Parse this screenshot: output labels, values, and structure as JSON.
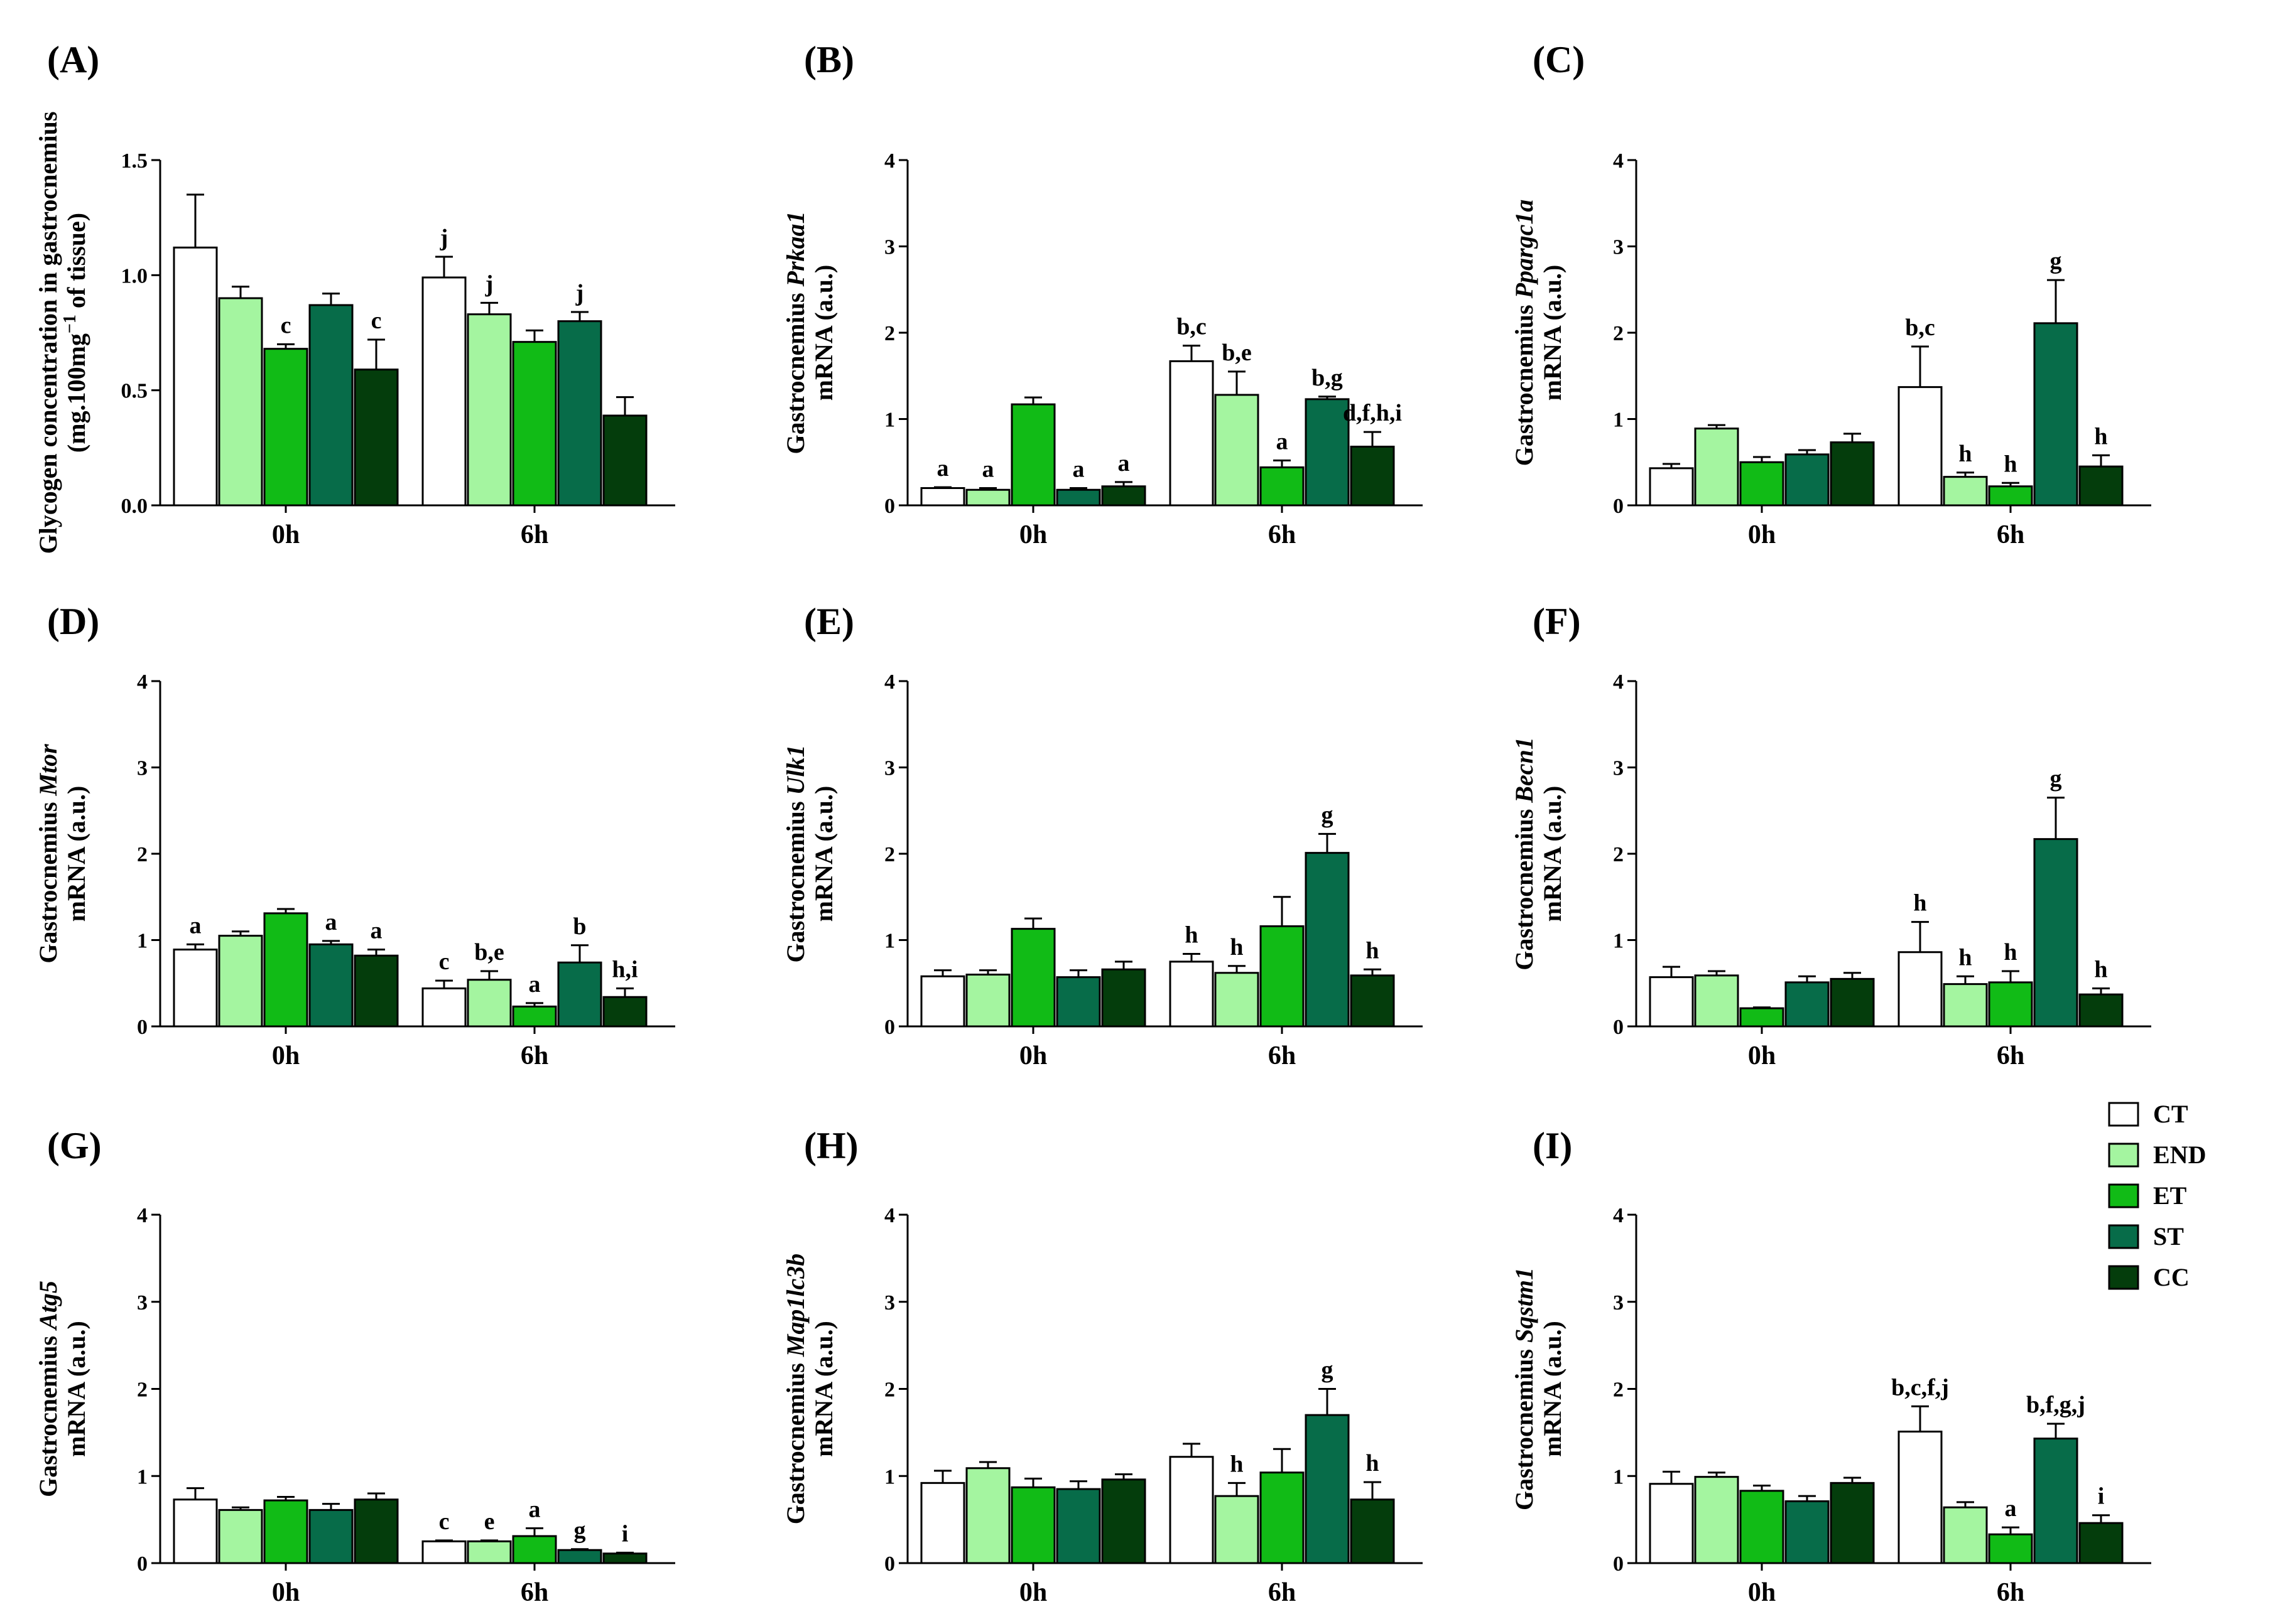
{
  "colors": {
    "CT": "#ffffff",
    "END": "#a4f5a0",
    "ET": "#11bb16",
    "ST": "#076c49",
    "CC": "#043d0c",
    "axis": "#000000"
  },
  "legend": {
    "position": "right, beside panel (I)",
    "items": [
      "CT",
      "END",
      "ET",
      "ST",
      "CC"
    ]
  },
  "chart_data": [
    {
      "panel": "(A)",
      "type": "bar",
      "ylabel_line1": "Glycogen concentration in gastrocnemius",
      "ylabel_line2_parts": [
        "(mg.100mg",
        "−1",
        " of tissue)"
      ],
      "ylim": [
        0,
        1.5
      ],
      "yticks": [
        "0.0",
        "0.5",
        "1.0",
        "1.5"
      ],
      "ytick_values": [
        0,
        0.5,
        1.0,
        1.5
      ],
      "categories": [
        "0h",
        "6h"
      ],
      "series": [
        {
          "name": "CT",
          "values": [
            1.12,
            0.99
          ],
          "errors": [
            0.23,
            0.09
          ],
          "labels": [
            "",
            "j"
          ]
        },
        {
          "name": "END",
          "values": [
            0.9,
            0.83
          ],
          "errors": [
            0.05,
            0.05
          ],
          "labels": [
            "",
            "j"
          ]
        },
        {
          "name": "ET",
          "values": [
            0.68,
            0.71
          ],
          "errors": [
            0.02,
            0.05
          ],
          "labels": [
            "c",
            ""
          ]
        },
        {
          "name": "ST",
          "values": [
            0.87,
            0.8
          ],
          "errors": [
            0.05,
            0.04
          ],
          "labels": [
            "",
            "j"
          ]
        },
        {
          "name": "CC",
          "values": [
            0.59,
            0.39
          ],
          "errors": [
            0.13,
            0.08
          ],
          "labels": [
            "c",
            ""
          ]
        }
      ]
    },
    {
      "panel": "(B)",
      "type": "bar",
      "ylabel_line1_parts": [
        "Gastrocnemius ",
        "Prkaa1"
      ],
      "ylabel_line2": "mRNA (a.u.)",
      "ylim": [
        0,
        4
      ],
      "yticks": [
        "0",
        "1",
        "2",
        "3",
        "4"
      ],
      "ytick_values": [
        0,
        1,
        2,
        3,
        4
      ],
      "categories": [
        "0h",
        "6h"
      ],
      "series": [
        {
          "name": "CT",
          "values": [
            0.2,
            1.67
          ],
          "errors": [
            0.01,
            0.18
          ],
          "labels": [
            "a",
            "b,c"
          ]
        },
        {
          "name": "END",
          "values": [
            0.18,
            1.28
          ],
          "errors": [
            0.02,
            0.27
          ],
          "labels": [
            "a",
            "b,e"
          ]
        },
        {
          "name": "ET",
          "values": [
            1.17,
            0.44
          ],
          "errors": [
            0.08,
            0.08
          ],
          "labels": [
            "",
            "a"
          ]
        },
        {
          "name": "ST",
          "values": [
            0.18,
            1.23
          ],
          "errors": [
            0.02,
            0.03
          ],
          "labels": [
            "a",
            "b,g"
          ]
        },
        {
          "name": "CC",
          "values": [
            0.22,
            0.68
          ],
          "errors": [
            0.05,
            0.17
          ],
          "labels": [
            "a",
            "d,f,h,i"
          ]
        }
      ]
    },
    {
      "panel": "(C)",
      "type": "bar",
      "ylabel_line1_parts": [
        "Gastrocnemius ",
        "Ppargc1a"
      ],
      "ylabel_line2": "mRNA (a.u.)",
      "ylim": [
        0,
        4
      ],
      "yticks": [
        "0",
        "1",
        "2",
        "3",
        "4"
      ],
      "ytick_values": [
        0,
        1,
        2,
        3,
        4
      ],
      "categories": [
        "0h",
        "6h"
      ],
      "series": [
        {
          "name": "CT",
          "values": [
            0.43,
            1.37
          ],
          "errors": [
            0.05,
            0.47
          ],
          "labels": [
            "",
            "b,c"
          ]
        },
        {
          "name": "END",
          "values": [
            0.89,
            0.33
          ],
          "errors": [
            0.04,
            0.05
          ],
          "labels": [
            "",
            "h"
          ]
        },
        {
          "name": "ET",
          "values": [
            0.5,
            0.22
          ],
          "errors": [
            0.06,
            0.04
          ],
          "labels": [
            "",
            "h"
          ]
        },
        {
          "name": "ST",
          "values": [
            0.59,
            2.11
          ],
          "errors": [
            0.05,
            0.5
          ],
          "labels": [
            "",
            "g"
          ]
        },
        {
          "name": "CC",
          "values": [
            0.73,
            0.45
          ],
          "errors": [
            0.1,
            0.13
          ],
          "labels": [
            "",
            "h"
          ]
        }
      ]
    },
    {
      "panel": "(D)",
      "type": "bar",
      "ylabel_line1_parts": [
        "Gastrocnemius ",
        "Mtor"
      ],
      "ylabel_line2": "mRNA (a.u.)",
      "ylim": [
        0,
        4
      ],
      "yticks": [
        "0",
        "1",
        "2",
        "3",
        "4"
      ],
      "ytick_values": [
        0,
        1,
        2,
        3,
        4
      ],
      "categories": [
        "0h",
        "6h"
      ],
      "series": [
        {
          "name": "CT",
          "values": [
            0.89,
            0.44
          ],
          "errors": [
            0.06,
            0.09
          ],
          "labels": [
            "a",
            "c"
          ]
        },
        {
          "name": "END",
          "values": [
            1.05,
            0.54
          ],
          "errors": [
            0.05,
            0.1
          ],
          "labels": [
            "",
            "b,e"
          ]
        },
        {
          "name": "ET",
          "values": [
            1.31,
            0.23
          ],
          "errors": [
            0.05,
            0.04
          ],
          "labels": [
            "",
            "a"
          ]
        },
        {
          "name": "ST",
          "values": [
            0.95,
            0.74
          ],
          "errors": [
            0.04,
            0.2
          ],
          "labels": [
            "a",
            "b"
          ]
        },
        {
          "name": "CC",
          "values": [
            0.82,
            0.34
          ],
          "errors": [
            0.07,
            0.1
          ],
          "labels": [
            "a",
            "h,i"
          ]
        }
      ]
    },
    {
      "panel": "(E)",
      "type": "bar",
      "ylabel_line1_parts": [
        "Gastrocnemius ",
        "Ulk1"
      ],
      "ylabel_line2": "mRNA (a.u.)",
      "ylim": [
        0,
        4
      ],
      "yticks": [
        "0",
        "1",
        "2",
        "3",
        "4"
      ],
      "ytick_values": [
        0,
        1,
        2,
        3,
        4
      ],
      "categories": [
        "0h",
        "6h"
      ],
      "series": [
        {
          "name": "CT",
          "values": [
            0.58,
            0.75
          ],
          "errors": [
            0.07,
            0.09
          ],
          "labels": [
            "",
            "h"
          ]
        },
        {
          "name": "END",
          "values": [
            0.6,
            0.62
          ],
          "errors": [
            0.05,
            0.08
          ],
          "labels": [
            "",
            "h"
          ]
        },
        {
          "name": "ET",
          "values": [
            1.13,
            1.16
          ],
          "errors": [
            0.12,
            0.34
          ],
          "labels": [
            "",
            ""
          ]
        },
        {
          "name": "ST",
          "values": [
            0.57,
            2.01
          ],
          "errors": [
            0.08,
            0.22
          ],
          "labels": [
            "",
            "g"
          ]
        },
        {
          "name": "CC",
          "values": [
            0.66,
            0.59
          ],
          "errors": [
            0.09,
            0.07
          ],
          "labels": [
            "",
            "h"
          ]
        }
      ]
    },
    {
      "panel": "(F)",
      "type": "bar",
      "ylabel_line1_parts": [
        "Gastrocnemius ",
        "Becn1"
      ],
      "ylabel_line2": "mRNA (a.u.)",
      "ylim": [
        0,
        4
      ],
      "yticks": [
        "0",
        "1",
        "2",
        "3",
        "4"
      ],
      "ytick_values": [
        0,
        1,
        2,
        3,
        4
      ],
      "categories": [
        "0h",
        "6h"
      ],
      "series": [
        {
          "name": "CT",
          "values": [
            0.57,
            0.86
          ],
          "errors": [
            0.12,
            0.35
          ],
          "labels": [
            "",
            "h"
          ]
        },
        {
          "name": "END",
          "values": [
            0.59,
            0.49
          ],
          "errors": [
            0.05,
            0.09
          ],
          "labels": [
            "",
            "h"
          ]
        },
        {
          "name": "ET",
          "values": [
            0.21,
            0.51
          ],
          "errors": [
            0.01,
            0.13
          ],
          "labels": [
            "",
            "h"
          ]
        },
        {
          "name": "ST",
          "values": [
            0.51,
            2.17
          ],
          "errors": [
            0.07,
            0.48
          ],
          "labels": [
            "",
            "g"
          ]
        },
        {
          "name": "CC",
          "values": [
            0.55,
            0.37
          ],
          "errors": [
            0.07,
            0.07
          ],
          "labels": [
            "",
            "h"
          ]
        }
      ]
    },
    {
      "panel": "(G)",
      "type": "bar",
      "ylabel_line1_parts": [
        "Gastrocnemius ",
        "Atg5"
      ],
      "ylabel_line2": "mRNA (a.u.)",
      "ylim": [
        0,
        4
      ],
      "yticks": [
        "0",
        "1",
        "2",
        "3",
        "4"
      ],
      "ytick_values": [
        0,
        1,
        2,
        3,
        4
      ],
      "categories": [
        "0h",
        "6h"
      ],
      "series": [
        {
          "name": "CT",
          "values": [
            0.73,
            0.25
          ],
          "errors": [
            0.13,
            0.01
          ],
          "labels": [
            "",
            "c"
          ]
        },
        {
          "name": "END",
          "values": [
            0.61,
            0.25
          ],
          "errors": [
            0.03,
            0.01
          ],
          "labels": [
            "",
            "e"
          ]
        },
        {
          "name": "ET",
          "values": [
            0.72,
            0.31
          ],
          "errors": [
            0.04,
            0.09
          ],
          "labels": [
            "",
            "a"
          ]
        },
        {
          "name": "ST",
          "values": [
            0.61,
            0.15
          ],
          "errors": [
            0.07,
            0.01
          ],
          "labels": [
            "",
            "g"
          ]
        },
        {
          "name": "CC",
          "values": [
            0.73,
            0.11
          ],
          "errors": [
            0.07,
            0.01
          ],
          "labels": [
            "",
            "i"
          ]
        }
      ]
    },
    {
      "panel": "(H)",
      "type": "bar",
      "ylabel_line1_parts": [
        "Gastrocnemius ",
        "Map1lc3b"
      ],
      "ylabel_line2": "mRNA (a.u.)",
      "ylim": [
        0,
        4
      ],
      "yticks": [
        "0",
        "1",
        "2",
        "3",
        "4"
      ],
      "ytick_values": [
        0,
        1,
        2,
        3,
        4
      ],
      "categories": [
        "0h",
        "6h"
      ],
      "series": [
        {
          "name": "CT",
          "values": [
            0.92,
            1.22
          ],
          "errors": [
            0.14,
            0.15
          ],
          "labels": [
            "",
            ""
          ]
        },
        {
          "name": "END",
          "values": [
            1.09,
            0.77
          ],
          "errors": [
            0.07,
            0.15
          ],
          "labels": [
            "",
            "h"
          ]
        },
        {
          "name": "ET",
          "values": [
            0.87,
            1.04
          ],
          "errors": [
            0.1,
            0.27
          ],
          "labels": [
            "",
            ""
          ]
        },
        {
          "name": "ST",
          "values": [
            0.85,
            1.7
          ],
          "errors": [
            0.09,
            0.3
          ],
          "labels": [
            "",
            "g"
          ]
        },
        {
          "name": "CC",
          "values": [
            0.96,
            0.73
          ],
          "errors": [
            0.06,
            0.2
          ],
          "labels": [
            "",
            "h"
          ]
        }
      ]
    },
    {
      "panel": "(I)",
      "type": "bar",
      "ylabel_line1_parts": [
        "Gastrocnemius ",
        "Sqstm1"
      ],
      "ylabel_line2": "mRNA (a.u.)",
      "ylim": [
        0,
        4
      ],
      "yticks": [
        "0",
        "1",
        "2",
        "3",
        "4"
      ],
      "ytick_values": [
        0,
        1,
        2,
        3,
        4
      ],
      "categories": [
        "0h",
        "6h"
      ],
      "series": [
        {
          "name": "CT",
          "values": [
            0.91,
            1.51
          ],
          "errors": [
            0.14,
            0.29
          ],
          "labels": [
            "",
            "b,c,f,j"
          ]
        },
        {
          "name": "END",
          "values": [
            0.99,
            0.64
          ],
          "errors": [
            0.05,
            0.06
          ],
          "labels": [
            "",
            ""
          ]
        },
        {
          "name": "ET",
          "values": [
            0.83,
            0.33
          ],
          "errors": [
            0.06,
            0.08
          ],
          "labels": [
            "",
            "a"
          ]
        },
        {
          "name": "ST",
          "values": [
            0.71,
            1.43
          ],
          "errors": [
            0.06,
            0.17
          ],
          "labels": [
            "",
            "b,f,g,j"
          ]
        },
        {
          "name": "CC",
          "values": [
            0.92,
            0.46
          ],
          "errors": [
            0.06,
            0.09
          ],
          "labels": [
            "",
            "i"
          ]
        }
      ]
    }
  ]
}
